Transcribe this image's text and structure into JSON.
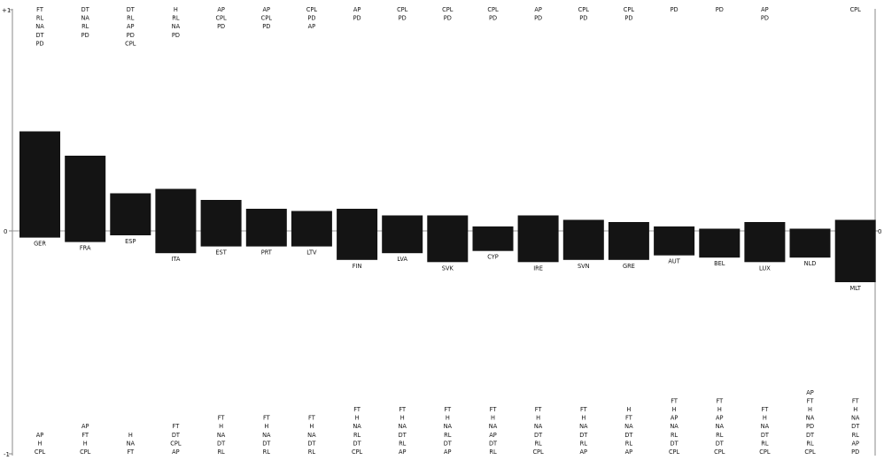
{
  "chart_data": {
    "type": "bar",
    "title": "",
    "xlabel": "",
    "ylabel": "",
    "ylim": [
      -1,
      1
    ],
    "y_ticks_left": [
      "+1",
      "0",
      "-1"
    ],
    "y_ticks_right": [
      "",
      "0",
      ""
    ],
    "grid": false,
    "colors": {
      "bar": "#141414",
      "axis": "#888888",
      "text": "#111111"
    },
    "categories": [
      "GER",
      "FRA",
      "ESP",
      "ITA",
      "EST",
      "PRT",
      "LTV",
      "FIN",
      "LVA",
      "SVK",
      "CYP",
      "IRE",
      "SVN",
      "GRE",
      "AUT",
      "BEL",
      "LUX",
      "NLD",
      "MLT"
    ],
    "series": [
      {
        "values": [
          0.43,
          0.28,
          0.17,
          0.16,
          0.11,
          0.11,
          0.1,
          0.09,
          0.08,
          0.05,
          0.02,
          0.03,
          0.02,
          0.01,
          0.01,
          0.01,
          0.0,
          -0.01,
          -0.03
        ]
      }
    ],
    "bar_top": [
      0.45,
      0.34,
      0.17,
      0.19,
      0.14,
      0.1,
      0.09,
      0.1,
      0.07,
      0.07,
      0.02,
      0.07,
      0.05,
      0.04,
      0.02,
      0.01,
      0.04,
      0.01,
      0.05
    ],
    "bar_bottom": [
      -0.03,
      -0.05,
      -0.02,
      -0.1,
      -0.07,
      -0.07,
      -0.07,
      -0.13,
      -0.1,
      -0.14,
      -0.09,
      -0.14,
      -0.13,
      -0.13,
      -0.11,
      -0.12,
      -0.14,
      -0.12,
      -0.23
    ],
    "top_labels": [
      [
        "FT",
        "RL",
        "NA",
        "DT",
        "PD"
      ],
      [
        "DT",
        "NA",
        "RL",
        "PD"
      ],
      [
        "DT",
        "RL",
        "AP",
        "PD",
        "CPL"
      ],
      [
        "H",
        "RL",
        "NA",
        "PD"
      ],
      [
        "AP",
        "CPL",
        "PD"
      ],
      [
        "AP",
        "CPL",
        "PD"
      ],
      [
        "CPL",
        "PD",
        "AP"
      ],
      [
        "AP",
        "PD"
      ],
      [
        "CPL",
        "PD"
      ],
      [
        "CPL",
        "PD"
      ],
      [
        "CPL",
        "PD"
      ],
      [
        "AP",
        "PD"
      ],
      [
        "CPL",
        "PD"
      ],
      [
        "CPL",
        "PD"
      ],
      [
        "PD"
      ],
      [
        "PD"
      ],
      [
        "AP",
        "PD"
      ],
      [],
      [
        "CPL"
      ]
    ],
    "bottom_labels": [
      [
        "AP",
        "H",
        "CPL"
      ],
      [
        "AP",
        "FT",
        "H",
        "CPL"
      ],
      [
        "H",
        "NA",
        "FT"
      ],
      [
        "FT",
        "DT",
        "CPL",
        "AP"
      ],
      [
        "FT",
        "H",
        "NA",
        "DT",
        "RL"
      ],
      [
        "FT",
        "H",
        "NA",
        "DT",
        "RL"
      ],
      [
        "FT",
        "H",
        "NA",
        "DT",
        "RL"
      ],
      [
        "FT",
        "H",
        "NA",
        "RL",
        "DT",
        "CPL"
      ],
      [
        "FT",
        "H",
        "NA",
        "DT",
        "RL",
        "AP"
      ],
      [
        "FT",
        "H",
        "NA",
        "RL",
        "DT",
        "AP"
      ],
      [
        "FT",
        "H",
        "NA",
        "AP",
        "DT",
        "RL"
      ],
      [
        "FT",
        "H",
        "NA",
        "DT",
        "RL",
        "CPL"
      ],
      [
        "FT",
        "H",
        "NA",
        "DT",
        "RL",
        "AP"
      ],
      [
        "H",
        "FT",
        "NA",
        "DT",
        "RL",
        "AP"
      ],
      [
        "FT",
        "H",
        "AP",
        "NA",
        "RL",
        "DT",
        "CPL"
      ],
      [
        "FT",
        "H",
        "AP",
        "NA",
        "RL",
        "DT",
        "CPL"
      ],
      [
        "FT",
        "H",
        "NA",
        "DT",
        "RL",
        "CPL"
      ],
      [
        "AP",
        "FT",
        "H",
        "NA",
        "PD",
        "DT",
        "RL",
        "CPL"
      ],
      [
        "FT",
        "H",
        "NA",
        "DT",
        "RL",
        "AP",
        "PD"
      ]
    ]
  }
}
